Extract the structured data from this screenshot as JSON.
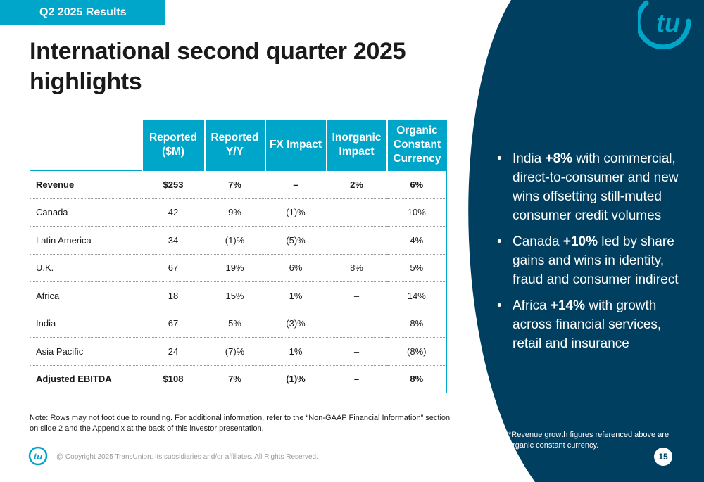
{
  "header": {
    "tag": "Q2 2025 Results",
    "title": "International second quarter 2025 highlights"
  },
  "colors": {
    "accent": "#00a6ca",
    "navy": "#003f5f"
  },
  "table": {
    "headers": [
      "Reported ($M)",
      "Reported Y/Y",
      "FX Impact",
      "Inorganic Impact",
      "Organic Constant Currency"
    ],
    "rows": [
      {
        "label": "Revenue",
        "bold": true,
        "cells": [
          "$253",
          "7%",
          "–",
          "2%",
          "6%"
        ]
      },
      {
        "label": "Canada",
        "bold": false,
        "cells": [
          "42",
          "9%",
          "(1)%",
          "–",
          "10%"
        ]
      },
      {
        "label": "Latin America",
        "bold": false,
        "cells": [
          "34",
          "(1)%",
          "(5)%",
          "–",
          "4%"
        ]
      },
      {
        "label": "U.K.",
        "bold": false,
        "cells": [
          "67",
          "19%",
          "6%",
          "8%",
          "5%"
        ]
      },
      {
        "label": "Africa",
        "bold": false,
        "cells": [
          "18",
          "15%",
          "1%",
          "–",
          "14%"
        ]
      },
      {
        "label": "India",
        "bold": false,
        "cells": [
          "67",
          "5%",
          "(3)%",
          "–",
          "8%"
        ]
      },
      {
        "label": "Asia Pacific",
        "bold": false,
        "cells": [
          "24",
          "(7)%",
          "1%",
          "–",
          "(8%)"
        ]
      },
      {
        "label": "Adjusted EBITDA",
        "bold": true,
        "cells": [
          "$108",
          "7%",
          "(1)%",
          "–",
          "8%"
        ]
      }
    ]
  },
  "note": "Note: Rows may not foot due to rounding. For additional information, refer to the “Non-GAAP Financial Information” section on slide 2 and the Appendix at the back of this investor presentation.",
  "bullets": [
    {
      "lead": "India ",
      "highlight": "+8%",
      "rest": " with commercial, direct-to-consumer and new wins offsetting still-muted consumer credit volumes"
    },
    {
      "lead": "Canada ",
      "highlight": "+10%",
      "rest": " led by share gains and wins in identity, fraud and consumer indirect"
    },
    {
      "lead": "Africa ",
      "highlight": "+14%",
      "rest": " with growth across financial services, retail and insurance"
    }
  ],
  "bullet_symbol": "•",
  "footnote": "*Revenue growth figures referenced above are organic constant currency.",
  "footer": {
    "logo_text": "tu",
    "copyright": "@ Copyright 2025 TransUnion, its subsidiaries and/or affiliates.  All Rights Reserved.",
    "page_number": "15"
  },
  "icons": [
    "transunion-logo-icon"
  ]
}
